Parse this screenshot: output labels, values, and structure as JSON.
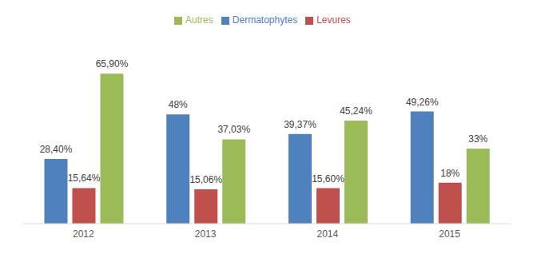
{
  "chart_data": {
    "type": "bar",
    "categories": [
      "2012",
      "2013",
      "2014",
      "2015"
    ],
    "series": [
      {
        "name": "Dermatophytes",
        "color": "#4f81bd",
        "values": [
          28.4,
          48,
          39.37,
          49.26
        ],
        "value_labels": [
          "28,40%",
          "48%",
          "39,37%",
          "49,26%"
        ]
      },
      {
        "name": "Levures",
        "color": "#c0504d",
        "values": [
          15.64,
          15.06,
          15.6,
          18
        ],
        "value_labels": [
          "15,64%",
          "15,06%",
          "15,60%",
          "18%"
        ]
      },
      {
        "name": "Autres",
        "color": "#9bbb59",
        "values": [
          65.9,
          37.03,
          45.24,
          33
        ],
        "value_labels": [
          "65,90%",
          "37,03%",
          "45,24%",
          "33%"
        ]
      }
    ],
    "data_labels": true,
    "legend": "top",
    "grid": false,
    "tick_labels": "x"
  }
}
